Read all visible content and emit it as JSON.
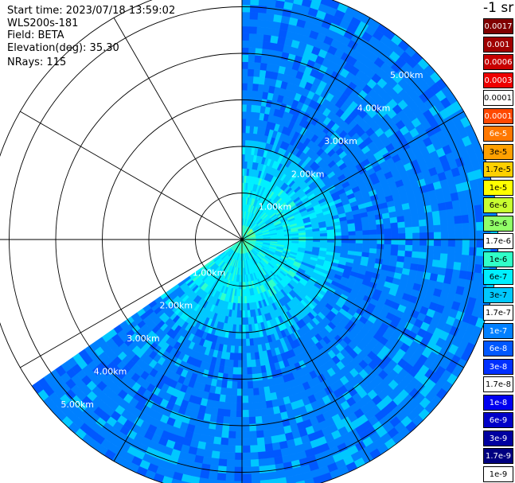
{
  "info": {
    "start_time": "Start time: 2023/07/18 13:59:02",
    "instrument": "WLS200s-181",
    "field": "Field: BETA",
    "elevation": "Elevation(deg): 35.30",
    "nrays": "NRays: 115"
  },
  "colorbar": {
    "title": "-1 sr",
    "entries": [
      {
        "label": "0.0017",
        "color": "#800000",
        "text_color": "#ffffff"
      },
      {
        "label": "0.001",
        "color": "#a00000",
        "text_color": "#ffffff"
      },
      {
        "label": "0.0006",
        "color": "#c80000",
        "text_color": "#ffffff"
      },
      {
        "label": "0.0003",
        "color": "#ee0000",
        "text_color": "#ffffff"
      },
      {
        "label": "0.00017",
        "color": "#ffffff",
        "text_color": "#000000"
      },
      {
        "label": "0.0001",
        "color": "#ff4800",
        "text_color": "#ffffff"
      },
      {
        "label": "6e-5",
        "color": "#ff7800",
        "text_color": "#ffffff"
      },
      {
        "label": "3e-5",
        "color": "#ffa000",
        "text_color": "#000000"
      },
      {
        "label": "1.7e-5",
        "color": "#ffd000",
        "text_color": "#000000"
      },
      {
        "label": "1e-5",
        "color": "#ffff00",
        "text_color": "#000000"
      },
      {
        "label": "6e-6",
        "color": "#c8ff30",
        "text_color": "#000000"
      },
      {
        "label": "3e-6",
        "color": "#90ff68",
        "text_color": "#000000"
      },
      {
        "label": "1.7e-6",
        "color": "#ffffff",
        "text_color": "#000000"
      },
      {
        "label": "1e-6",
        "color": "#30ffc8",
        "text_color": "#000000"
      },
      {
        "label": "6e-7",
        "color": "#00f0ff",
        "text_color": "#000000"
      },
      {
        "label": "3e-7",
        "color": "#00c8ff",
        "text_color": "#000000"
      },
      {
        "label": "1.7e-7",
        "color": "#ffffff",
        "text_color": "#000000"
      },
      {
        "label": "1e-7",
        "color": "#0080ff",
        "text_color": "#ffffff"
      },
      {
        "label": "6e-8",
        "color": "#0058ff",
        "text_color": "#ffffff"
      },
      {
        "label": "3e-8",
        "color": "#0030ff",
        "text_color": "#ffffff"
      },
      {
        "label": "1.7e-8",
        "color": "#ffffff",
        "text_color": "#000000"
      },
      {
        "label": "1e-8",
        "color": "#0000f0",
        "text_color": "#ffffff"
      },
      {
        "label": "6e-9",
        "color": "#0000c8",
        "text_color": "#ffffff"
      },
      {
        "label": "3e-9",
        "color": "#0000a0",
        "text_color": "#ffffff"
      },
      {
        "label": "1.7e-9",
        "color": "#000080",
        "text_color": "#ffffff"
      },
      {
        "label": "1e-9",
        "color": "#ffffff",
        "text_color": "#000000"
      }
    ]
  },
  "chart_data": {
    "type": "heatmap",
    "projection": "polar (PPI)",
    "range_unit": "km",
    "max_range_km": 5.5,
    "range_rings_km": [
      1,
      2,
      3,
      4,
      5
    ],
    "ring_labels": [
      "1.00km",
      "2.00km",
      "3.00km",
      "4.00km",
      "5.00km"
    ],
    "spokes_deg": [
      0,
      30,
      60,
      90,
      120,
      150,
      180,
      210,
      240,
      270,
      300,
      330
    ],
    "data_sector_deg": [
      0,
      235
    ],
    "value_bands": [
      {
        "max_range_km": 0.35,
        "value": "1e-6"
      },
      {
        "max_range_km": 1.35,
        "value": "6e-7"
      },
      {
        "max_range_km": 2.2,
        "value": "3e-7"
      },
      {
        "max_range_km": 5.5,
        "value": "1e-7"
      }
    ]
  }
}
